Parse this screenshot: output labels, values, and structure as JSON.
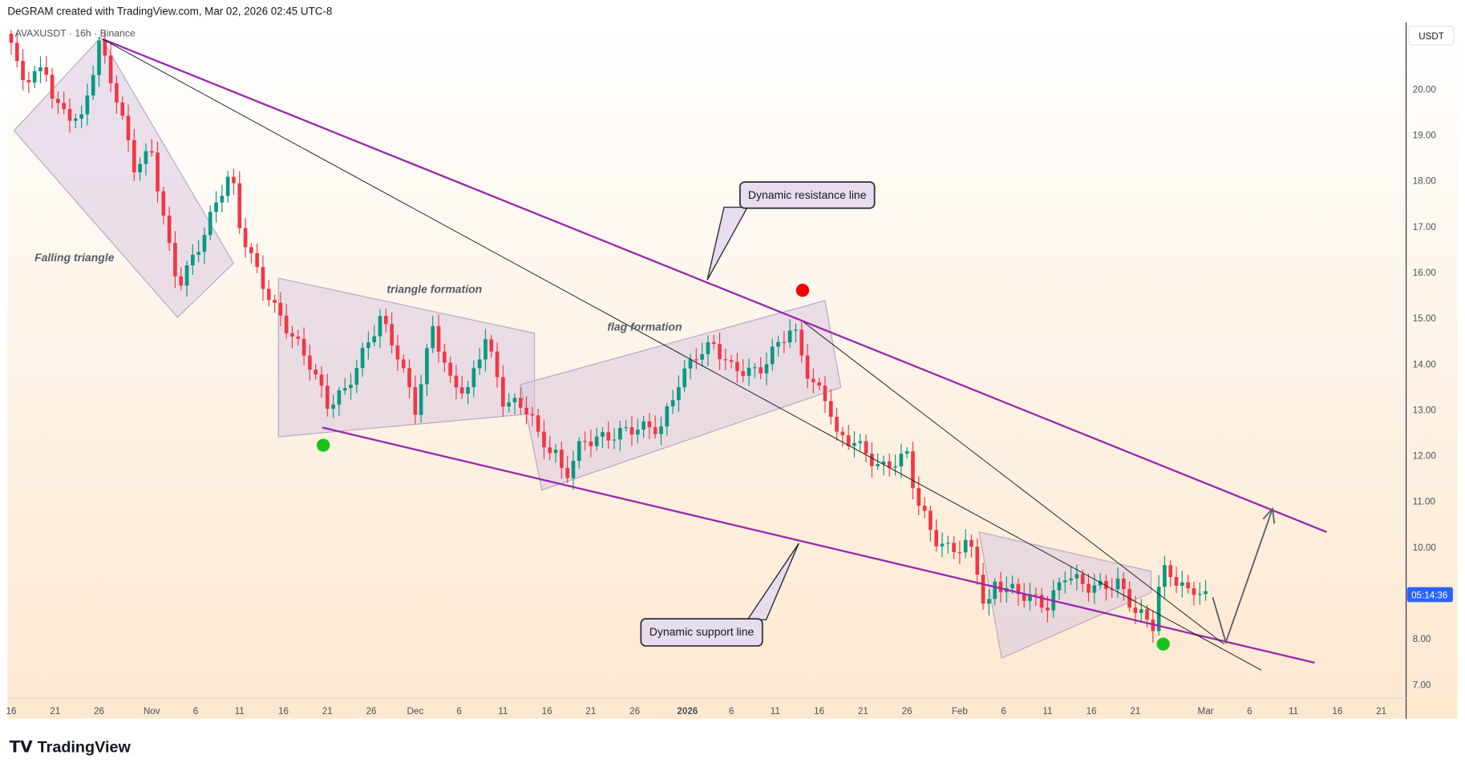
{
  "header": {
    "credit": "DeGRAM created with TradingView.com, Mar 02, 2026 02:45 UTC-8"
  },
  "symbol_legend": "AVAXUSDT · 16h · Binance",
  "currency_button": "USDT",
  "countdown": "05:14:36",
  "brand": "TradingView",
  "colors": {
    "up": "#089981",
    "down": "#f23645",
    "trendline": "#9c27b0",
    "countdown_bg": "#2962ff",
    "pattern_fill": "#d9c8e0"
  },
  "annotations": {
    "falling_triangle": "Falling triangle",
    "triangle_formation": "triangle formation",
    "flag_formation": "flag formation",
    "resistance_callout": "Dynamic resistance line",
    "support_callout": "Dynamic support line"
  },
  "chart_data": {
    "type": "candlestick",
    "interval": "16h",
    "ylim": [
      6.6,
      21.8
    ],
    "y_ticks": [
      "20.00",
      "19.00",
      "18.00",
      "17.00",
      "16.00",
      "15.00",
      "14.00",
      "13.00",
      "12.00",
      "11.00",
      "10.00",
      "8.00",
      "7.00"
    ],
    "x_ticks": [
      {
        "label": "16",
        "date": "2025-10-16"
      },
      {
        "label": "21",
        "date": "2025-10-21"
      },
      {
        "label": "26",
        "date": "2025-10-26"
      },
      {
        "label": "Nov",
        "date": "2025-11-01"
      },
      {
        "label": "6",
        "date": "2025-11-06"
      },
      {
        "label": "11",
        "date": "2025-11-11"
      },
      {
        "label": "16",
        "date": "2025-11-16"
      },
      {
        "label": "21",
        "date": "2025-11-21"
      },
      {
        "label": "26",
        "date": "2025-11-26"
      },
      {
        "label": "Dec",
        "date": "2025-12-01"
      },
      {
        "label": "6",
        "date": "2025-12-06"
      },
      {
        "label": "11",
        "date": "2025-12-11"
      },
      {
        "label": "16",
        "date": "2025-12-16"
      },
      {
        "label": "21",
        "date": "2025-12-21"
      },
      {
        "label": "26",
        "date": "2025-12-26"
      },
      {
        "label": "2026",
        "date": "2026-01-01"
      },
      {
        "label": "6",
        "date": "2026-01-06"
      },
      {
        "label": "11",
        "date": "2026-01-11"
      },
      {
        "label": "16",
        "date": "2026-01-16"
      },
      {
        "label": "21",
        "date": "2026-01-21"
      },
      {
        "label": "26",
        "date": "2026-01-26"
      },
      {
        "label": "Feb",
        "date": "2026-02-01"
      },
      {
        "label": "6",
        "date": "2026-02-06"
      },
      {
        "label": "11",
        "date": "2026-02-11"
      },
      {
        "label": "16",
        "date": "2026-02-16"
      },
      {
        "label": "21",
        "date": "2026-02-21"
      },
      {
        "label": "Mar",
        "date": "2026-03-01"
      },
      {
        "label": "6",
        "date": "2026-03-06"
      },
      {
        "label": "11",
        "date": "2026-03-11"
      },
      {
        "label": "16",
        "date": "2026-03-16"
      },
      {
        "label": "21",
        "date": "2026-03-21"
      }
    ],
    "close_path": [
      [
        "2025-10-16",
        21.0
      ],
      [
        "2025-10-17",
        20.2
      ],
      [
        "2025-10-20",
        20.4
      ],
      [
        "2025-10-21",
        19.6
      ],
      [
        "2025-10-24",
        19.3
      ],
      [
        "2025-10-26",
        21.0
      ],
      [
        "2025-10-28",
        19.8
      ],
      [
        "2025-10-30",
        18.3
      ],
      [
        "2025-11-01",
        18.6
      ],
      [
        "2025-11-03",
        16.5
      ],
      [
        "2025-11-04",
        15.7
      ],
      [
        "2025-11-06",
        16.4
      ],
      [
        "2025-11-09",
        17.8
      ],
      [
        "2025-11-10",
        18.2
      ],
      [
        "2025-11-11",
        17.0
      ],
      [
        "2025-11-13",
        16.0
      ],
      [
        "2025-11-15",
        15.2
      ],
      [
        "2025-11-17",
        14.6
      ],
      [
        "2025-11-19",
        14.0
      ],
      [
        "2025-11-21",
        13.1
      ],
      [
        "2025-11-23",
        13.4
      ],
      [
        "2025-11-25",
        14.2
      ],
      [
        "2025-11-27",
        15.0
      ],
      [
        "2025-11-29",
        14.2
      ],
      [
        "2025-12-01",
        13.0
      ],
      [
        "2025-12-03",
        14.8
      ],
      [
        "2025-12-05",
        13.6
      ],
      [
        "2025-12-07",
        13.4
      ],
      [
        "2025-12-09",
        14.6
      ],
      [
        "2025-12-11",
        13.2
      ],
      [
        "2025-12-14",
        13.0
      ],
      [
        "2025-12-15",
        12.4
      ],
      [
        "2025-12-17",
        12.0
      ],
      [
        "2025-12-18",
        11.5
      ],
      [
        "2025-12-20",
        12.3
      ],
      [
        "2025-12-23",
        12.4
      ],
      [
        "2025-12-26",
        12.6
      ],
      [
        "2025-12-29",
        12.6
      ],
      [
        "2025-12-31",
        13.6
      ],
      [
        "2026-01-02",
        14.2
      ],
      [
        "2026-01-04",
        14.4
      ],
      [
        "2026-01-06",
        13.9
      ],
      [
        "2026-01-09",
        13.8
      ],
      [
        "2026-01-12",
        14.6
      ],
      [
        "2026-01-13",
        14.8
      ],
      [
        "2026-01-15",
        13.6
      ],
      [
        "2026-01-17",
        13.2
      ],
      [
        "2026-01-18",
        12.4
      ],
      [
        "2026-01-20",
        12.3
      ],
      [
        "2026-01-23",
        11.7
      ],
      [
        "2026-01-26",
        12.0
      ],
      [
        "2026-01-27",
        11.1
      ],
      [
        "2026-01-29",
        10.2
      ],
      [
        "2026-01-31",
        9.9
      ],
      [
        "2026-02-02",
        10.1
      ],
      [
        "2026-02-03",
        9.5
      ],
      [
        "2026-02-04",
        8.5
      ],
      [
        "2026-02-05",
        9.2
      ],
      [
        "2026-02-09",
        8.9
      ],
      [
        "2026-02-11",
        8.7
      ],
      [
        "2026-02-13",
        9.4
      ],
      [
        "2026-02-16",
        9.1
      ],
      [
        "2026-02-19",
        9.2
      ],
      [
        "2026-02-21",
        8.6
      ],
      [
        "2026-02-23",
        8.3
      ],
      [
        "2026-02-24",
        9.5
      ],
      [
        "2026-02-25",
        9.4
      ],
      [
        "2026-02-27",
        9.0
      ],
      [
        "2026-02-28",
        9.1
      ],
      [
        "2026-03-01",
        8.9
      ]
    ]
  }
}
